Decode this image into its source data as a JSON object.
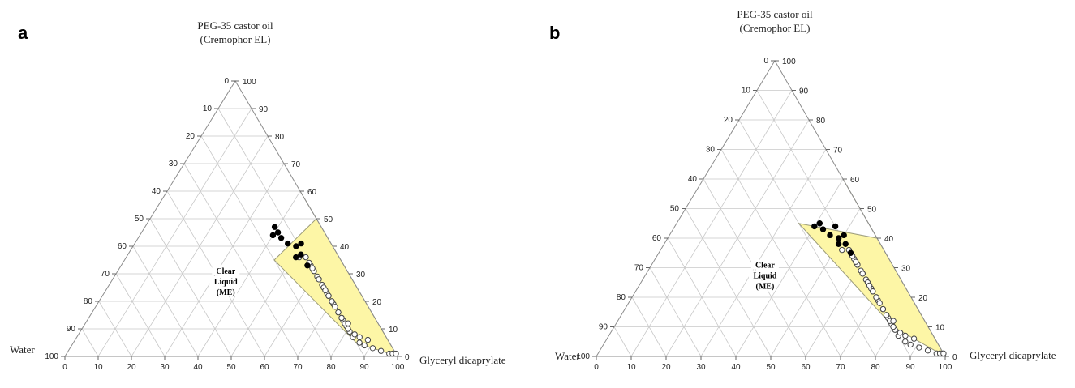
{
  "chart_data": [
    {
      "type": "scatter",
      "subtype": "ternary",
      "panel_label": "a",
      "components": {
        "top": "PEG-35 castor oil",
        "top_sub": "(Cremophor EL)",
        "left": "Water",
        "right": "Glyceryl dicaprylate"
      },
      "ticks": [
        0,
        10,
        20,
        30,
        40,
        50,
        60,
        70,
        80,
        90,
        100
      ],
      "grid": true,
      "region": {
        "label": [
          "Clear",
          "Liquid",
          "(ME)"
        ],
        "polygon": [
          [
            60,
            40
          ],
          [
            50,
            50
          ],
          [
            35,
            45
          ],
          [
            5,
            85
          ],
          [
            0,
            100
          ]
        ],
        "fill": "#fdf6a6"
      },
      "series": [
        {
          "marker": "open",
          "points": [
            [
              36,
              54
            ],
            [
              31,
              59
            ],
            [
              28,
              62
            ],
            [
              33,
              57
            ],
            [
              36,
              52
            ],
            [
              23,
              67
            ],
            [
              26,
              64
            ],
            [
              31,
              59
            ],
            [
              34,
              56
            ],
            [
              19,
              71
            ],
            [
              22,
              68
            ],
            [
              25,
              65
            ],
            [
              29,
              61
            ],
            [
              32,
              58
            ],
            [
              13,
              77
            ],
            [
              16,
              74
            ],
            [
              20,
              70
            ],
            [
              24,
              66
            ],
            [
              28,
              62
            ],
            [
              11,
              79
            ],
            [
              14,
              76
            ],
            [
              18,
              72
            ],
            [
              22,
              68
            ],
            [
              9,
              81
            ],
            [
              12,
              78
            ],
            [
              16,
              74
            ],
            [
              20,
              70
            ],
            [
              7,
              83
            ],
            [
              10,
              80
            ],
            [
              14,
              76
            ],
            [
              5,
              86
            ],
            [
              8,
              83
            ],
            [
              12,
              79
            ],
            [
              4,
              88
            ],
            [
              7,
              85
            ],
            [
              3,
              91
            ],
            [
              6,
              88
            ],
            [
              2,
              94
            ],
            [
              1,
              97
            ],
            [
              1,
              98
            ],
            [
              1,
              99
            ]
          ]
        },
        {
          "marker": "filled",
          "points": [
            [
              41,
              50
            ],
            [
              37,
              52
            ],
            [
              33,
              56
            ],
            [
              40,
              49
            ],
            [
              36,
              51
            ],
            [
              41,
              46
            ],
            [
              43,
              43
            ],
            [
              45,
              41
            ],
            [
              44,
              40
            ],
            [
              47,
              39
            ]
          ]
        }
      ]
    },
    {
      "type": "scatter",
      "subtype": "ternary",
      "panel_label": "b",
      "components": {
        "top": "PEG-35 castor oil",
        "top_sub": "(Cremophor EL)",
        "left": "Water",
        "right": "Glyceryl dicaprylate"
      },
      "ticks": [
        0,
        10,
        20,
        30,
        40,
        50,
        60,
        70,
        80,
        90,
        100
      ],
      "grid": true,
      "region": {
        "label": [
          "Clear",
          "Liquid",
          "(ME)"
        ],
        "polygon": [
          [
            60,
            40
          ],
          [
            50,
            50
          ],
          [
            40,
            60
          ],
          [
            45,
            35
          ],
          [
            10,
            80
          ],
          [
            0,
            100
          ]
        ],
        "fill": "#fdf6a6"
      },
      "series": [
        {
          "marker": "open",
          "points": [
            [
              36,
              54
            ],
            [
              31,
              59
            ],
            [
              28,
              62
            ],
            [
              33,
              57
            ],
            [
              36,
              52
            ],
            [
              23,
              67
            ],
            [
              26,
              64
            ],
            [
              31,
              59
            ],
            [
              34,
              56
            ],
            [
              19,
              71
            ],
            [
              22,
              68
            ],
            [
              25,
              65
            ],
            [
              29,
              61
            ],
            [
              32,
              58
            ],
            [
              13,
              77
            ],
            [
              16,
              74
            ],
            [
              20,
              70
            ],
            [
              24,
              66
            ],
            [
              28,
              62
            ],
            [
              11,
              79
            ],
            [
              14,
              76
            ],
            [
              18,
              72
            ],
            [
              22,
              68
            ],
            [
              9,
              81
            ],
            [
              12,
              78
            ],
            [
              16,
              74
            ],
            [
              20,
              70
            ],
            [
              7,
              83
            ],
            [
              10,
              80
            ],
            [
              14,
              76
            ],
            [
              5,
              86
            ],
            [
              8,
              83
            ],
            [
              12,
              79
            ],
            [
              4,
              88
            ],
            [
              7,
              85
            ],
            [
              3,
              91
            ],
            [
              6,
              88
            ],
            [
              2,
              94
            ],
            [
              1,
              97
            ],
            [
              1,
              98
            ],
            [
              1,
              99
            ]
          ]
        },
        {
          "marker": "filled",
          "points": [
            [
              44,
              46
            ],
            [
              41,
              50
            ],
            [
              38,
              52
            ],
            [
              35,
              55
            ],
            [
              40,
              49
            ],
            [
              38,
              50
            ],
            [
              41,
              46
            ],
            [
              43,
              43
            ],
            [
              45,
              41
            ],
            [
              44,
              40
            ]
          ]
        }
      ]
    }
  ]
}
